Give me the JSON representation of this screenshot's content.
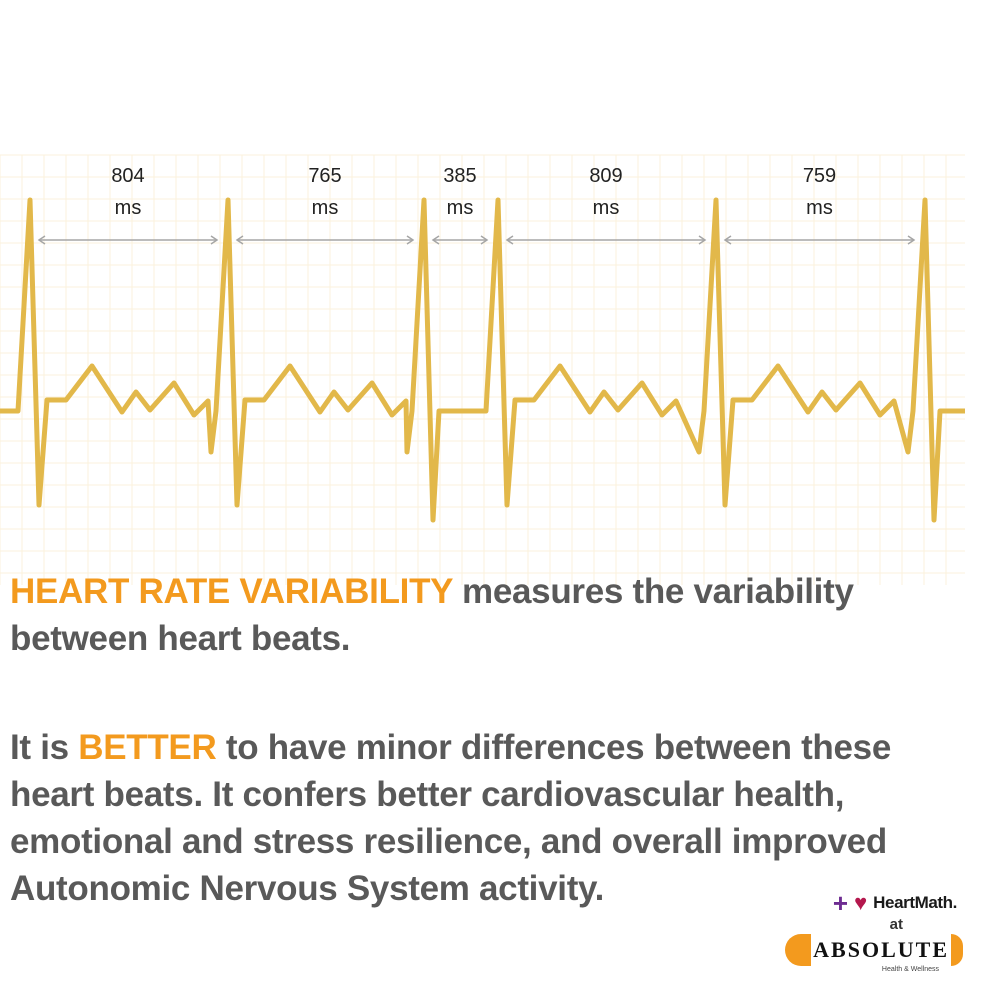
{
  "intervals": [
    {
      "value": "804",
      "unit": "ms"
    },
    {
      "value": "765",
      "unit": "ms"
    },
    {
      "value": "385",
      "unit": "ms"
    },
    {
      "value": "809",
      "unit": "ms"
    },
    {
      "value": "759",
      "unit": "ms"
    }
  ],
  "colors": {
    "trace": "#e2b84a",
    "grid": "#fbf2dc",
    "arrow": "#a6a6a6",
    "highlight": "#f39a1e",
    "body_text": "#595959"
  },
  "paragraph1": {
    "highlight": "HEART RATE VARIABILITY",
    "rest": " measures the variability between heart beats."
  },
  "paragraph2": {
    "before": "It is ",
    "highlight": "BETTER",
    "rest": " to have minor differences between these heart beats. It confers better cardiovascular health, emotional and stress resilience, and overall improved Autonomic Nervous System activity."
  },
  "logo": {
    "brand": "HeartMath.",
    "connector": "at",
    "company": "ABSOLUTE",
    "company_sub": "Health & Wellness"
  }
}
